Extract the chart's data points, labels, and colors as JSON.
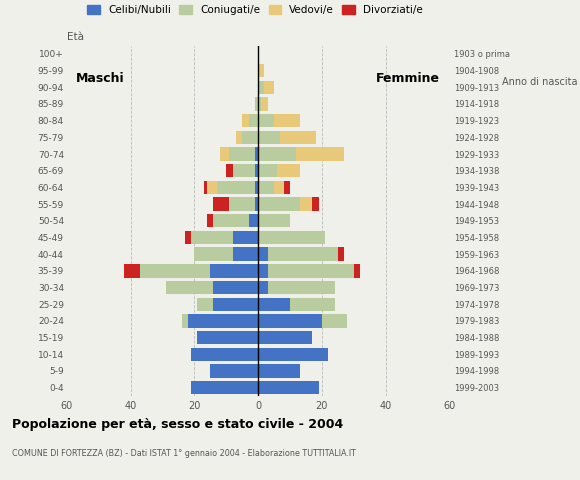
{
  "age_groups": [
    "0-4",
    "5-9",
    "10-14",
    "15-19",
    "20-24",
    "25-29",
    "30-34",
    "35-39",
    "40-44",
    "45-49",
    "50-54",
    "55-59",
    "60-64",
    "65-69",
    "70-74",
    "75-79",
    "80-84",
    "85-89",
    "90-94",
    "95-99",
    "100+"
  ],
  "birth_years": [
    "1999-2003",
    "1994-1998",
    "1989-1993",
    "1984-1988",
    "1979-1983",
    "1974-1978",
    "1969-1973",
    "1964-1968",
    "1959-1963",
    "1954-1958",
    "1949-1953",
    "1944-1948",
    "1939-1943",
    "1934-1938",
    "1929-1933",
    "1924-1928",
    "1919-1923",
    "1914-1918",
    "1909-1913",
    "1904-1908",
    "1903 o prima"
  ],
  "male": {
    "celibi": [
      21,
      15,
      21,
      19,
      22,
      14,
      14,
      15,
      8,
      8,
      3,
      1,
      1,
      1,
      1,
      0,
      0,
      0,
      0,
      0,
      0
    ],
    "coniugati": [
      0,
      0,
      0,
      0,
      2,
      5,
      15,
      22,
      12,
      13,
      11,
      8,
      12,
      7,
      8,
      5,
      3,
      1,
      0,
      0,
      0
    ],
    "vedovi": [
      0,
      0,
      0,
      0,
      0,
      0,
      0,
      0,
      0,
      0,
      0,
      0,
      3,
      0,
      3,
      2,
      2,
      0,
      0,
      0,
      0
    ],
    "divorziati": [
      0,
      0,
      0,
      0,
      0,
      0,
      0,
      5,
      0,
      2,
      2,
      5,
      1,
      2,
      0,
      0,
      0,
      0,
      0,
      0,
      0
    ]
  },
  "female": {
    "nubili": [
      19,
      13,
      22,
      17,
      20,
      10,
      3,
      3,
      3,
      0,
      0,
      0,
      0,
      0,
      0,
      0,
      0,
      0,
      0,
      0,
      0
    ],
    "coniugate": [
      0,
      0,
      0,
      0,
      8,
      14,
      21,
      27,
      22,
      21,
      10,
      13,
      5,
      6,
      12,
      7,
      5,
      1,
      2,
      0,
      0
    ],
    "vedove": [
      0,
      0,
      0,
      0,
      0,
      0,
      0,
      0,
      0,
      0,
      0,
      4,
      3,
      7,
      15,
      11,
      8,
      2,
      3,
      2,
      0
    ],
    "divorziate": [
      0,
      0,
      0,
      0,
      0,
      0,
      0,
      2,
      2,
      0,
      0,
      2,
      2,
      0,
      0,
      0,
      0,
      0,
      0,
      0,
      0
    ]
  },
  "colors": {
    "celibi": "#4472c4",
    "coniugati": "#b8cca0",
    "vedovi": "#e8c97a",
    "divorziati": "#cc2222"
  },
  "xlim": 60,
  "title": "Popolazione per età, sesso e stato civile - 2004",
  "subtitle": "COMUNE DI FORTEZZA (BZ) - Dati ISTAT 1° gennaio 2004 - Elaborazione TUTTITALIA.IT",
  "bg_color": "#f0f0eb",
  "grid_color": "#bbbbbb"
}
